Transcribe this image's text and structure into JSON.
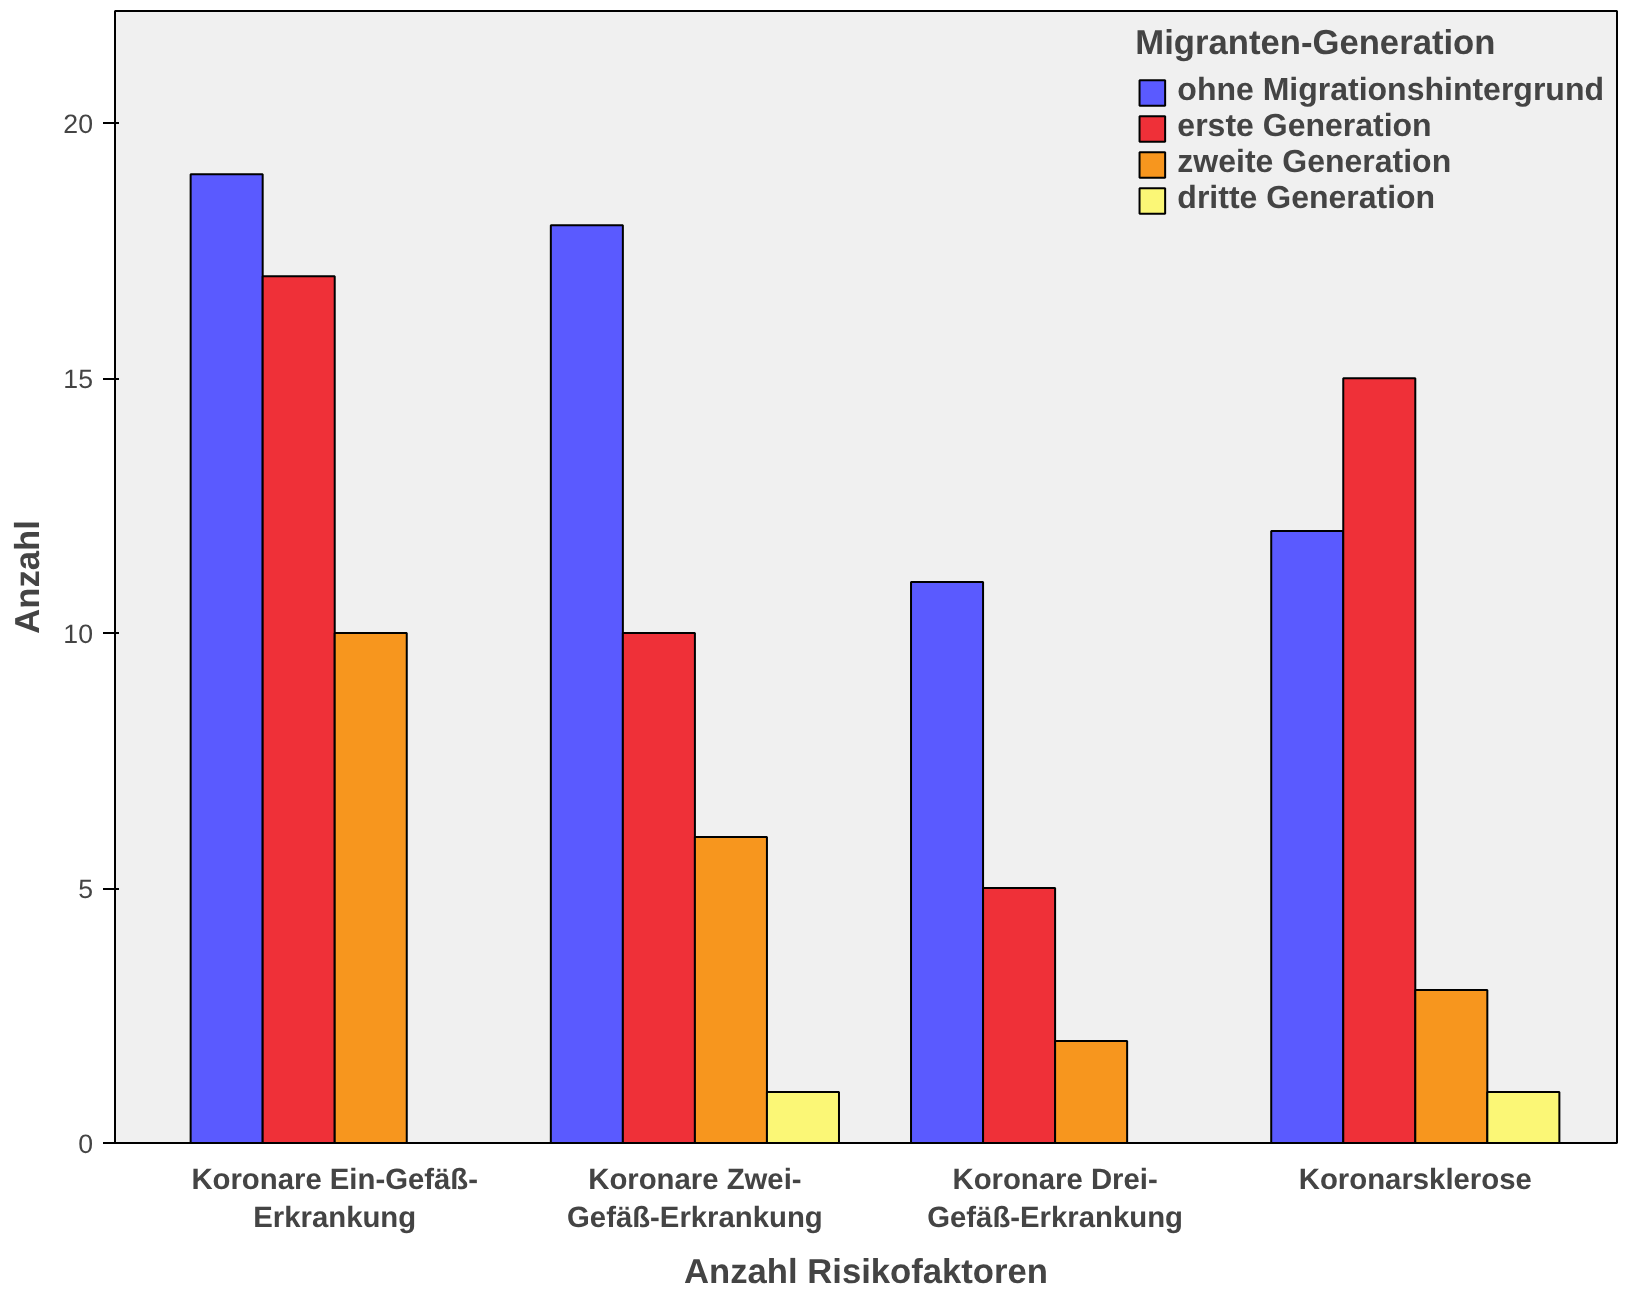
{
  "chart_data": {
    "type": "bar",
    "xlabel": "Anzahl Risikofaktoren",
    "ylabel": "Anzahl",
    "legend_title": "Migranten-Generation",
    "legend": "top right",
    "grid": false,
    "categories": [
      "Koronare Ein-Gefäß-\nErkrankung",
      "Koronare Zwei-\nGefäß-Erkrankung",
      "Koronare Drei-\nGefäß-Erkrankung",
      "Koronarsklerose"
    ],
    "ylim": [
      0,
      22.2
    ],
    "yticks": [
      0,
      5,
      10,
      15,
      20
    ],
    "series": [
      {
        "name": "ohne Migrationshintergrund",
        "color": "#5a5aff",
        "values": [
          19,
          18,
          11,
          12
        ]
      },
      {
        "name": "erste Generation",
        "color": "#ef3038",
        "values": [
          17,
          10,
          5,
          15
        ]
      },
      {
        "name": "zweite Generation",
        "color": "#f7961e",
        "values": [
          10,
          6,
          2,
          3
        ]
      },
      {
        "name": "dritte Generation",
        "color": "#fbf776",
        "values": [
          null,
          1,
          null,
          1
        ]
      }
    ]
  }
}
